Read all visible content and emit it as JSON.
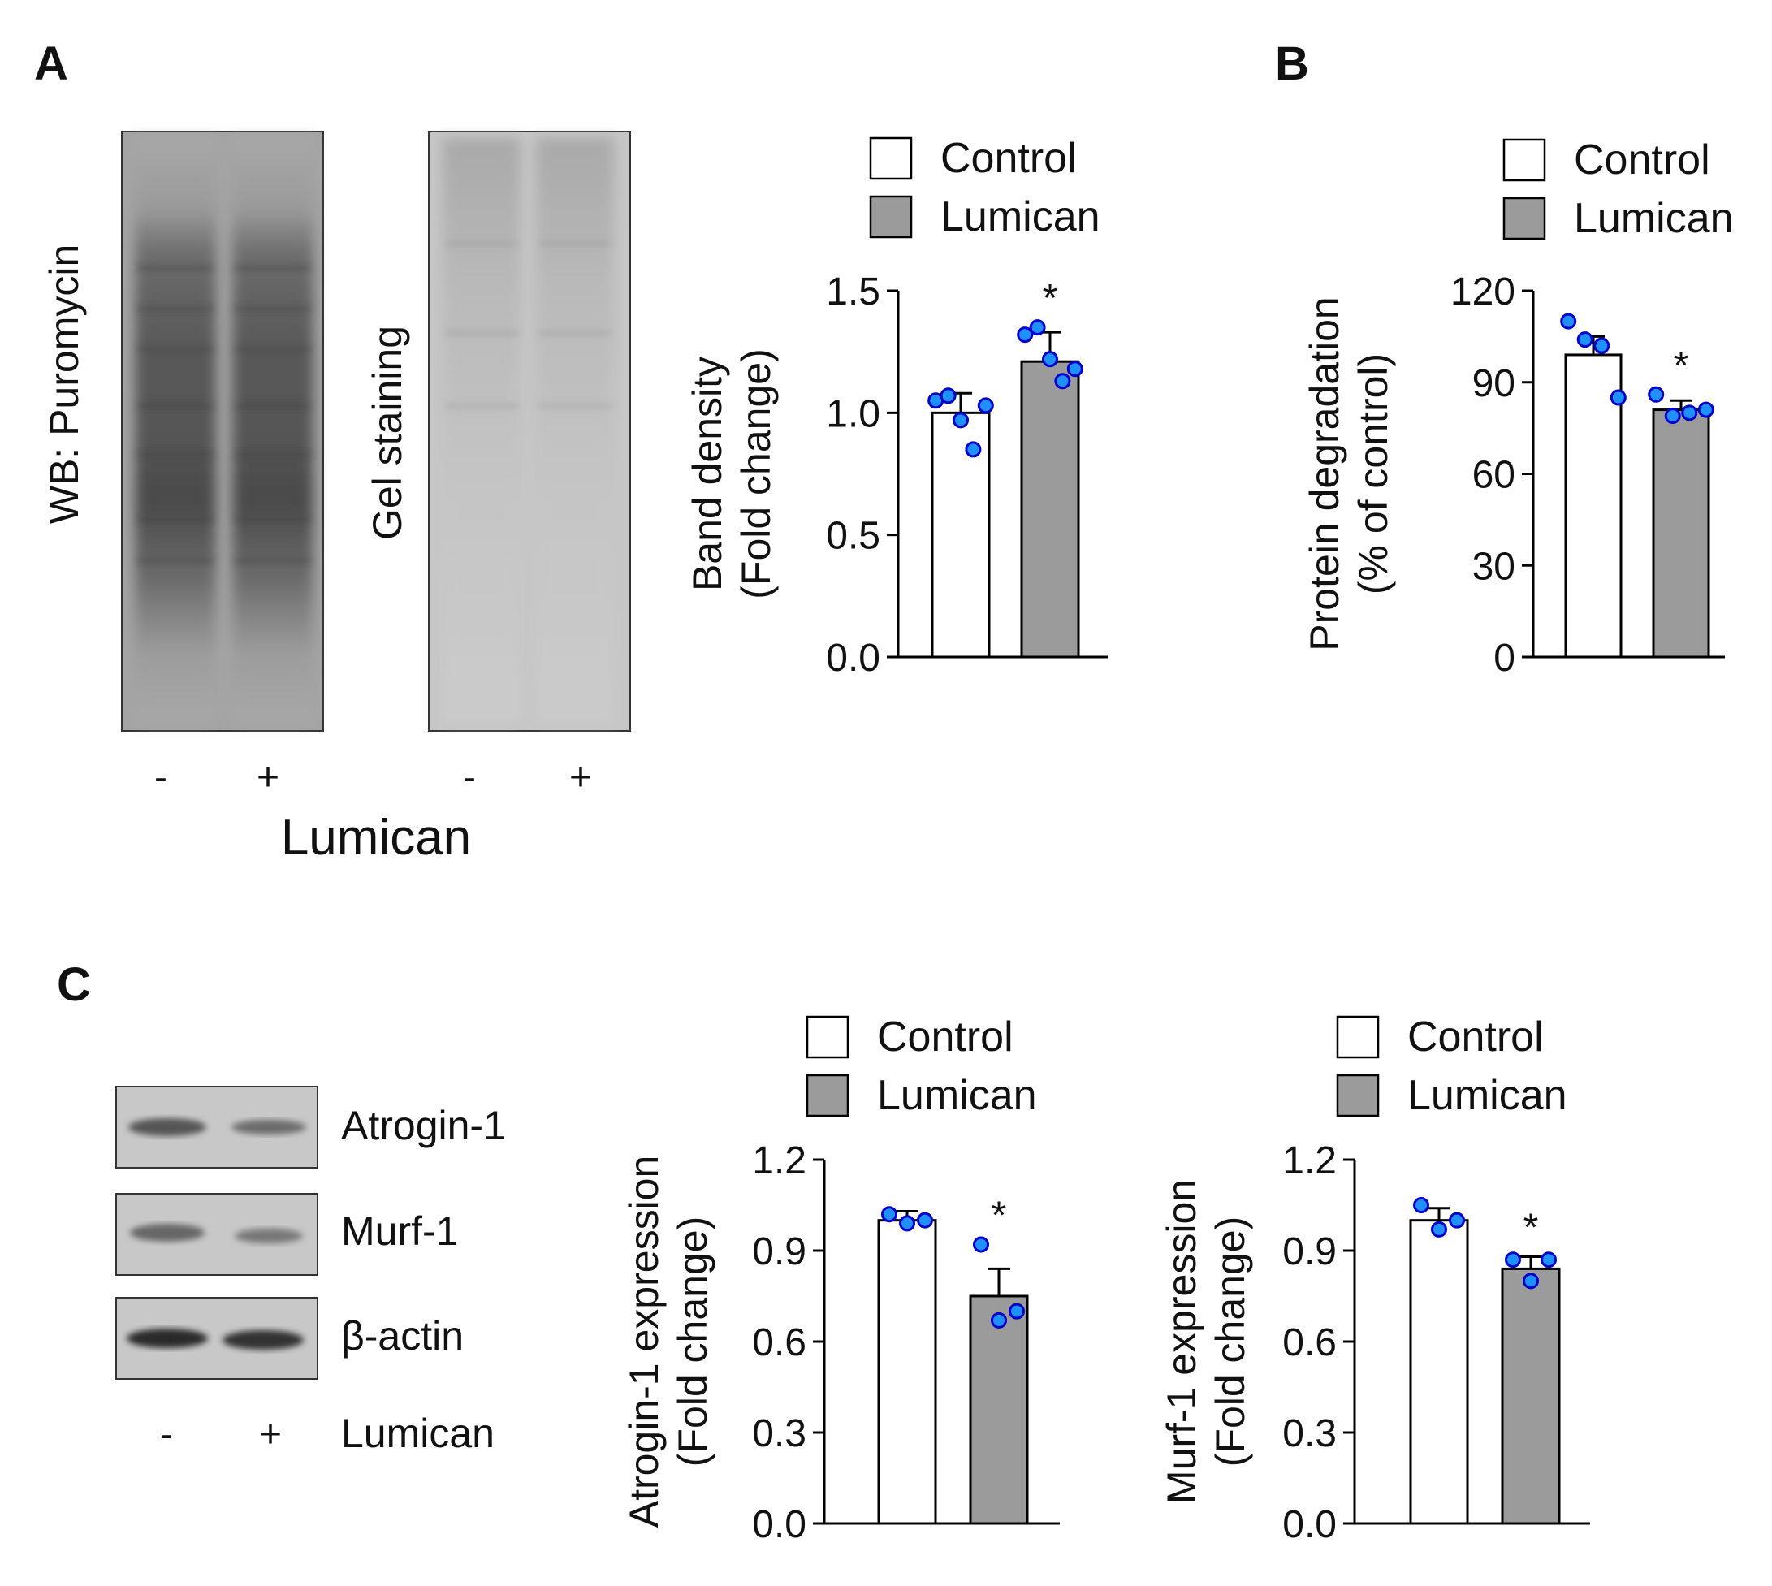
{
  "colors": {
    "control": "#ffffff",
    "lumican": "#9b9b9b",
    "point_fill": "#1e90ff",
    "point_stroke": "#0000cc",
    "axis": "#000000",
    "blot_bg": "#c8c8c8"
  },
  "panels": {
    "A": {
      "letter": "A",
      "blot1_label": "WB: Puromycin",
      "blot2_label": "Gel staining",
      "lane_minus": "-",
      "lane_plus": "+",
      "treatment_label": "Lumican"
    },
    "B": {
      "letter": "B"
    },
    "C": {
      "letter": "C",
      "blot_labels": [
        "Atrogin-1",
        "Murf-1",
        "β-actin"
      ],
      "lane_minus": "-",
      "lane_plus": "+",
      "treatment_label": "Lumican"
    }
  },
  "legend": {
    "control": "Control",
    "lumican": "Lumican"
  },
  "chart_data": [
    {
      "type": "bar",
      "panel": "A",
      "categories": [
        "Control",
        "Lumican"
      ],
      "values": [
        1.0,
        1.21
      ],
      "errors": [
        0.08,
        0.12
      ],
      "points": [
        [
          1.05,
          1.07,
          0.97,
          0.85,
          1.03
        ],
        [
          1.32,
          1.35,
          1.22,
          1.13,
          1.18
        ]
      ],
      "significance": [
        "",
        "*"
      ],
      "ylabel": [
        "Band density",
        "(Fold change)"
      ],
      "ylim": [
        0,
        1.5
      ],
      "yticks": [
        "0.0",
        "0.5",
        "1.0",
        "1.5"
      ]
    },
    {
      "type": "bar",
      "panel": "B",
      "categories": [
        "Control",
        "Lumican"
      ],
      "values": [
        99,
        81
      ],
      "errors": [
        6,
        3
      ],
      "points": [
        [
          110,
          104,
          102,
          85
        ],
        [
          86,
          79,
          80,
          81
        ]
      ],
      "significance": [
        "",
        "*"
      ],
      "ylabel": [
        "Protein degradation",
        "(% of control)"
      ],
      "ylim": [
        0,
        120
      ],
      "yticks": [
        "0",
        "30",
        "60",
        "90",
        "120"
      ]
    },
    {
      "type": "bar",
      "panel": "C",
      "categories": [
        "Control",
        "Lumican"
      ],
      "values": [
        1.0,
        0.75
      ],
      "errors": [
        0.03,
        0.09
      ],
      "points": [
        [
          1.02,
          0.99,
          1.0
        ],
        [
          0.92,
          0.67,
          0.7
        ]
      ],
      "significance": [
        "",
        "*"
      ],
      "ylabel": [
        "Atrogin-1 expression",
        "(Fold change)"
      ],
      "ylim": [
        0,
        1.2
      ],
      "yticks": [
        "0.0",
        "0.3",
        "0.6",
        "0.9",
        "1.2"
      ]
    },
    {
      "type": "bar",
      "panel": "C",
      "categories": [
        "Control",
        "Lumican"
      ],
      "values": [
        1.0,
        0.84
      ],
      "errors": [
        0.04,
        0.04
      ],
      "points": [
        [
          1.05,
          0.97,
          1.0
        ],
        [
          0.87,
          0.8,
          0.87
        ]
      ],
      "significance": [
        "",
        "*"
      ],
      "ylabel": [
        "Murf-1 expression",
        "(Fold change)"
      ],
      "ylim": [
        0,
        1.2
      ],
      "yticks": [
        "0.0",
        "0.3",
        "0.6",
        "0.9",
        "1.2"
      ]
    }
  ]
}
